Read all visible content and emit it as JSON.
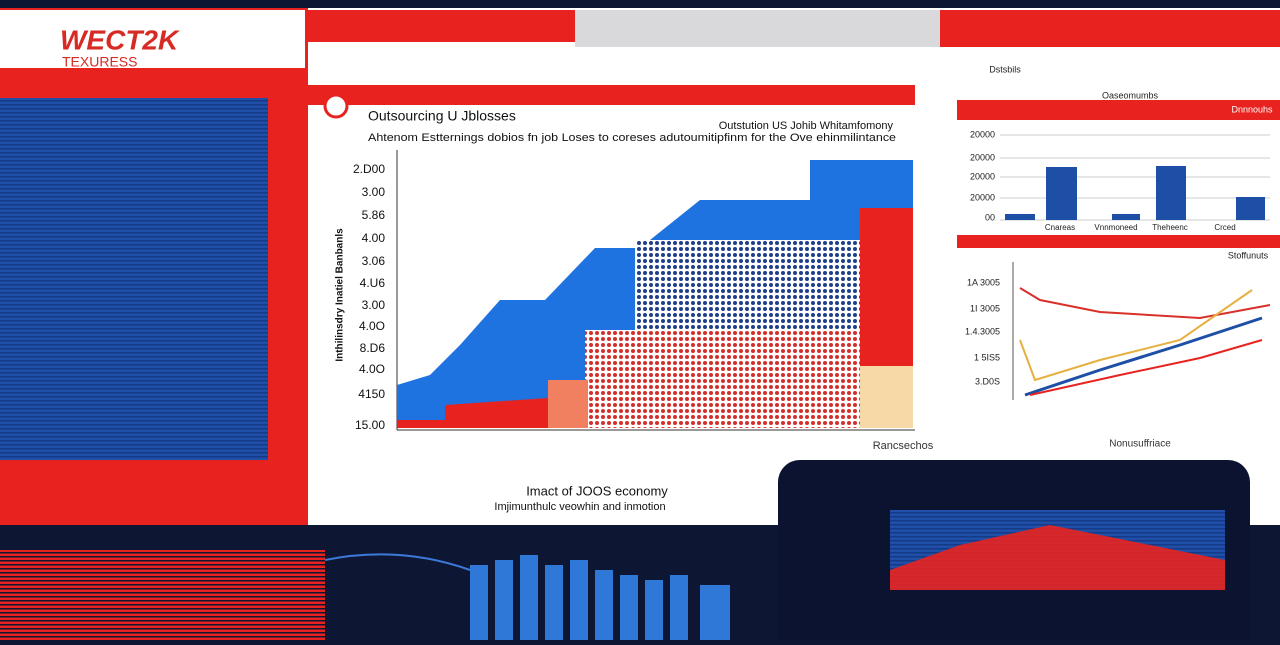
{
  "header": {
    "logo": "WECT2K",
    "logo_sub": "TEXURESS"
  },
  "main_panel": {
    "title": "Outsourcing U Jblosses",
    "subtitle": "Ahtenom Estternings dobios fn job Loses to coreses adutoumitipfinm for the Ove ehinmilintance",
    "subtitle_right": "Outstution US Johib Whitamfomony",
    "y_axis_title": "Inthilinsdry Inatiel Banbanls",
    "y_labels": [
      "2.D00",
      "3.00",
      "5.86",
      "4.00",
      "3.06",
      "4.U6",
      "3.00",
      "4.0O",
      "8.D6",
      "4.0O",
      "4150",
      "15.00"
    ],
    "x_axis_title": "Rancsechos",
    "caption": "Imact of JOOS economy",
    "caption_sub": "Imjimunthulc veowhin and inmotion"
  },
  "right_top_panel": {
    "title": "Dstsbils",
    "subtitle": "Oaseomumbs",
    "legend": "Dnnnouhs",
    "y_labels": [
      "20000",
      "20000",
      "20000",
      "20000",
      "00"
    ],
    "x_labels": [
      "Cnareas",
      "Vnnmoneed",
      "Theheenc",
      "Crced"
    ]
  },
  "right_bottom_panel": {
    "title": "Stoffunuts",
    "y_labels": [
      "1A 3005",
      "1I 3005",
      "1.4.3005",
      "1 5IS5",
      "3.D0S"
    ],
    "x_axis_title": "Nonusuffriace"
  }
}
